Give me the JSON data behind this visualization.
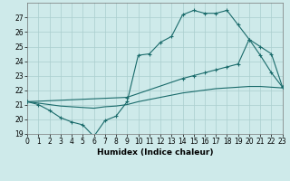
{
  "xlabel": "Humidex (Indice chaleur)",
  "bg_color": "#ceeaea",
  "grid_color": "#aacece",
  "line_color": "#1a6b6b",
  "line1_x": [
    0,
    1,
    2,
    3,
    4,
    5,
    6,
    7,
    8,
    9,
    10,
    11,
    12,
    13,
    14,
    15,
    16,
    17,
    18,
    19,
    20,
    21,
    22,
    23
  ],
  "line1_y": [
    21.2,
    21.0,
    20.6,
    20.1,
    19.8,
    19.6,
    18.8,
    19.9,
    20.2,
    21.2,
    24.4,
    24.5,
    25.3,
    25.7,
    27.2,
    27.5,
    27.3,
    27.3,
    27.5,
    26.5,
    25.5,
    24.4,
    23.2,
    22.2
  ],
  "line2_x": [
    0,
    9,
    14,
    15,
    16,
    17,
    18,
    19,
    20,
    21,
    22,
    23
  ],
  "line2_y": [
    21.2,
    21.5,
    22.8,
    23.0,
    23.2,
    23.4,
    23.6,
    23.8,
    25.5,
    25.0,
    24.5,
    22.2
  ],
  "line3_x": [
    0,
    1,
    2,
    3,
    4,
    5,
    6,
    7,
    8,
    9,
    10,
    11,
    12,
    13,
    14,
    15,
    16,
    17,
    18,
    19,
    20,
    21,
    22,
    23
  ],
  "line3_y": [
    21.2,
    21.1,
    21.0,
    20.9,
    20.85,
    20.8,
    20.75,
    20.85,
    20.9,
    21.0,
    21.2,
    21.35,
    21.5,
    21.65,
    21.8,
    21.9,
    22.0,
    22.1,
    22.15,
    22.2,
    22.25,
    22.25,
    22.2,
    22.15
  ],
  "ylim": [
    19,
    28
  ],
  "xlim": [
    0,
    23
  ],
  "yticks": [
    19,
    20,
    21,
    22,
    23,
    24,
    25,
    26,
    27
  ],
  "xticks": [
    0,
    1,
    2,
    3,
    4,
    5,
    6,
    7,
    8,
    9,
    10,
    11,
    12,
    13,
    14,
    15,
    16,
    17,
    18,
    19,
    20,
    21,
    22,
    23
  ],
  "tick_fontsize": 5.5,
  "label_fontsize": 6.5
}
